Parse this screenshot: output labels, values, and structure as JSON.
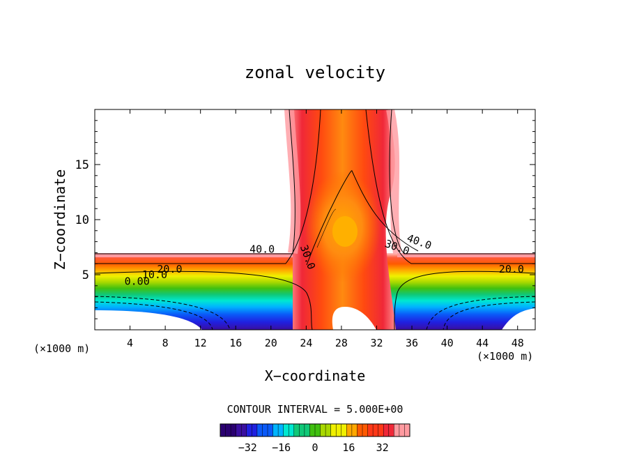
{
  "chart_data": {
    "type": "contour",
    "title": "zonal velocity",
    "xlabel": "X−coordinate",
    "ylabel": "Z−coordinate",
    "x_unit_left": "(×1000 m)",
    "x_unit_right": "(×1000 m)",
    "xlim": [
      0,
      50
    ],
    "ylim": [
      0,
      20
    ],
    "x_ticks": [
      4,
      8,
      12,
      16,
      20,
      24,
      28,
      32,
      36,
      40,
      44,
      48
    ],
    "y_ticks": [
      5,
      10,
      15
    ],
    "contour_interval_text": "CONTOUR INTERVAL = 5.000E+00",
    "contour_interval": 5,
    "contour_labels": [
      {
        "text": "40.0",
        "x": 19,
        "z": 7.3
      },
      {
        "text": "30.0",
        "x": 23.8,
        "z": 6.8
      },
      {
        "text": "30.0",
        "x": 34.2,
        "z": 7.5
      },
      {
        "text": "40.0",
        "x": 36.7,
        "z": 8.0
      },
      {
        "text": "20.0",
        "x": 8.5,
        "z": 5.5
      },
      {
        "text": "10.0",
        "x": 6.8,
        "z": 5.0
      },
      {
        "text": "0.00",
        "x": 4.8,
        "z": 4.4
      },
      {
        "text": "20.0",
        "x": 47.3,
        "z": 5.5
      }
    ],
    "colorbar": {
      "range": [
        -45,
        45
      ],
      "ticks": [
        -32,
        -16,
        0,
        16,
        32
      ],
      "colors": [
        "#2a0070",
        "#3a0fa0",
        "#2020e0",
        "#0a5af8",
        "#00b4ff",
        "#00e8d0",
        "#10c878",
        "#40c010",
        "#a8d800",
        "#f0f000",
        "#ffa800",
        "#ff5a00",
        "#ff3818",
        "#f02838",
        "#ff9aa0"
      ]
    }
  }
}
